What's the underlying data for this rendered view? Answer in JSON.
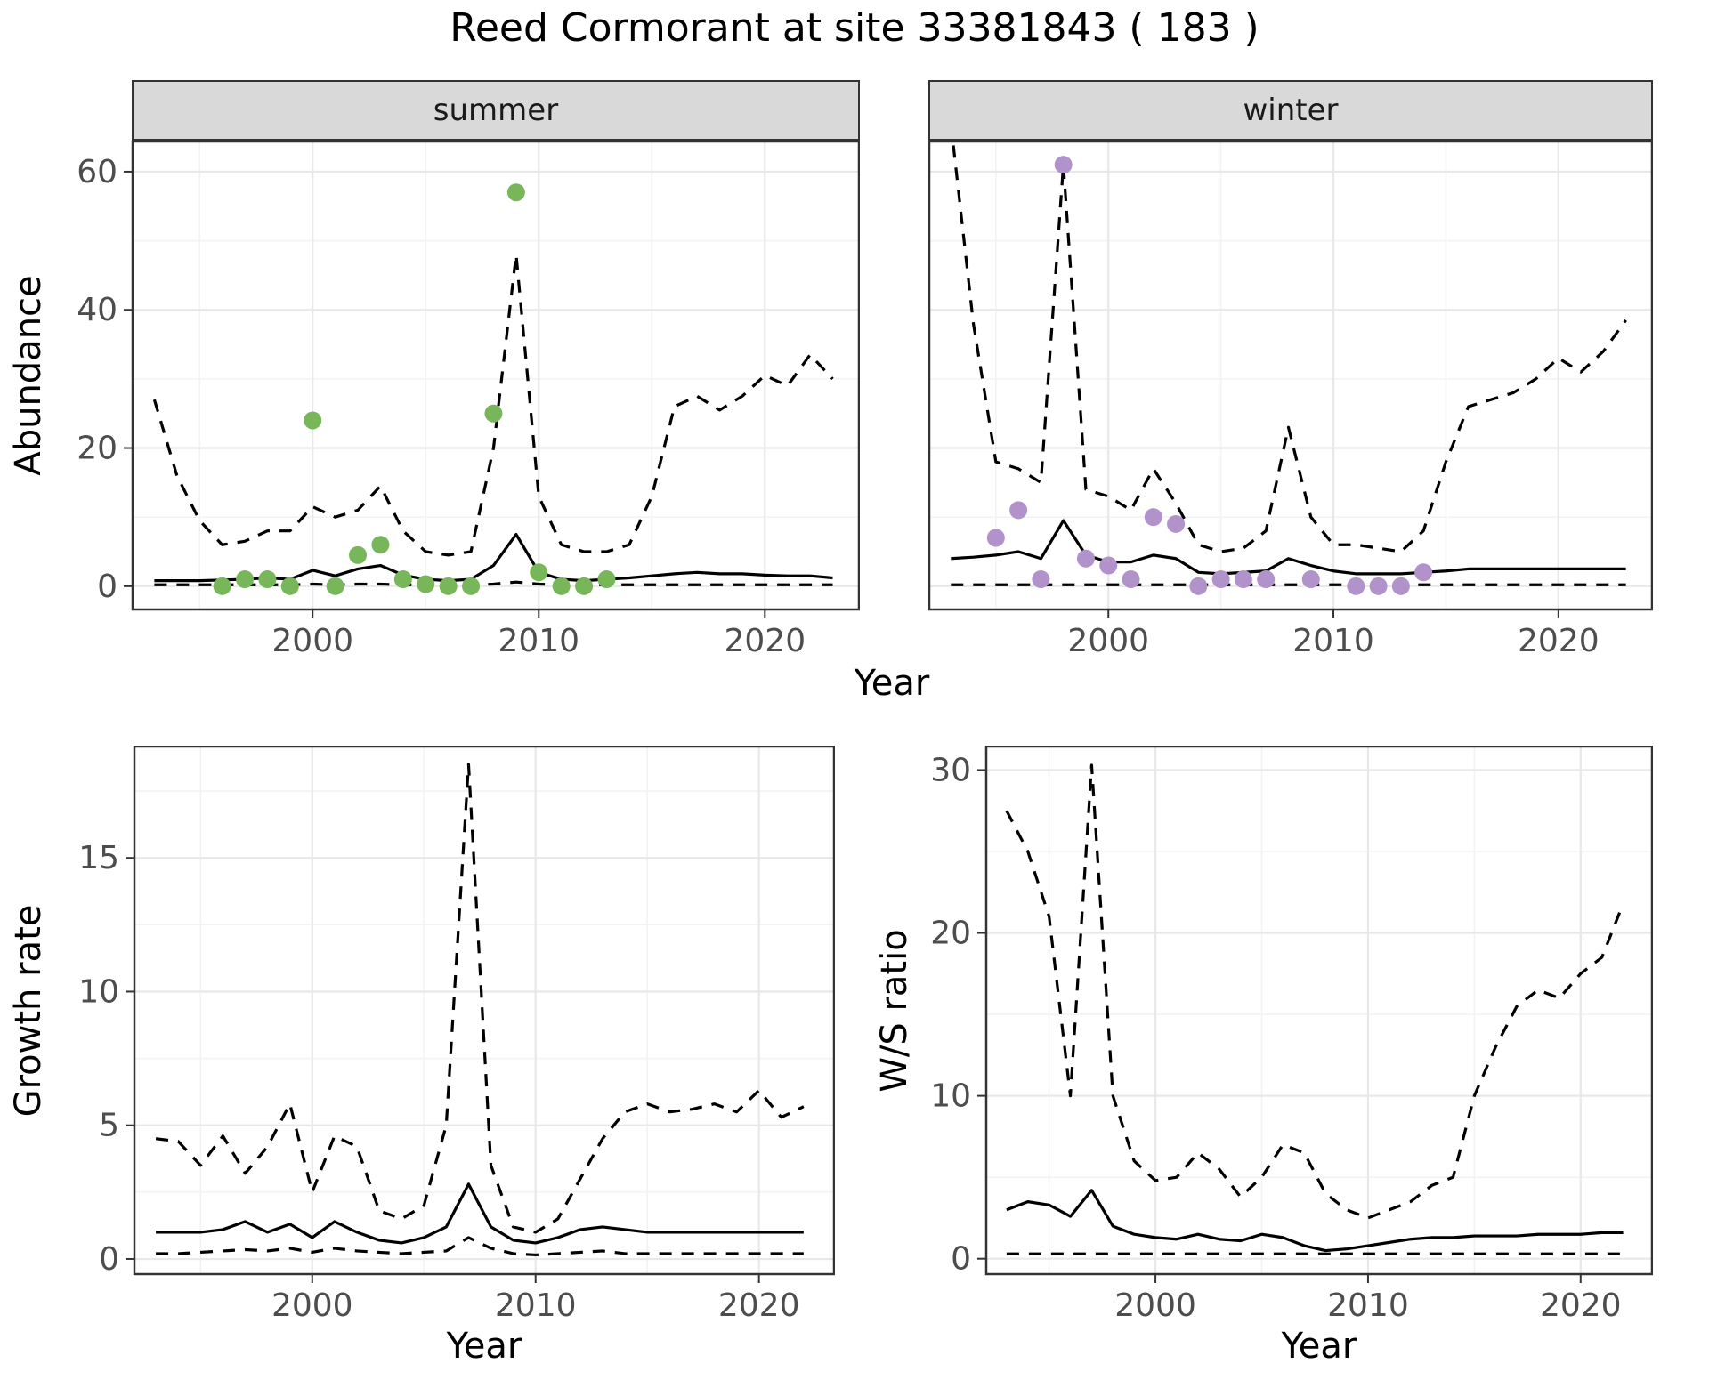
{
  "title": "Reed Cormorant at site 33381843 ( 183 )",
  "facets": {
    "summer": "summer",
    "winter": "winter"
  },
  "axes": {
    "abundance": "Abundance",
    "growth_rate": "Growth rate",
    "ws_ratio": "W/S ratio",
    "year": "Year"
  },
  "colors": {
    "summer_point": "#78b65a",
    "winter_point": "#b192cb",
    "line": "#000000",
    "strip_bg": "#d9d9d9",
    "panel_border": "#333333",
    "grid_major": "#e8e8e8",
    "grid_minor": "#f3f3f3",
    "tick_text": "#4d4d4d"
  },
  "chart_data": [
    {
      "id": "abundance-summer",
      "type": "line+scatter",
      "facet": "summer",
      "xlabel": "Year",
      "ylabel": "Abundance",
      "xlim": [
        1992,
        2024.2
      ],
      "ylim": [
        -3.5,
        64.5
      ],
      "xticks": [
        2000,
        2010,
        2020
      ],
      "yticks": [
        0,
        20,
        40,
        60
      ],
      "x": [
        1993,
        1994,
        1995,
        1996,
        1997,
        1998,
        1999,
        2000,
        2001,
        2002,
        2003,
        2004,
        2005,
        2006,
        2007,
        2008,
        2009,
        2010,
        2011,
        2012,
        2013,
        2014,
        2015,
        2016,
        2017,
        2018,
        2019,
        2020,
        2021,
        2022,
        2023
      ],
      "series": [
        {
          "name": "median",
          "style": "solid",
          "values": [
            0.8,
            0.8,
            0.8,
            0.9,
            1.0,
            1.2,
            1.0,
            2.3,
            1.5,
            2.5,
            3.0,
            1.6,
            1.0,
            0.8,
            1.0,
            3.0,
            7.5,
            2.0,
            1.0,
            0.8,
            1.0,
            1.2,
            1.5,
            1.8,
            2.0,
            1.8,
            1.8,
            1.6,
            1.5,
            1.5,
            1.2
          ]
        },
        {
          "name": "upper_ci",
          "style": "dashed",
          "values": [
            27,
            16,
            9.5,
            6,
            6.5,
            8,
            8,
            11.5,
            10,
            11,
            14.5,
            8,
            5,
            4.5,
            5,
            20,
            48,
            13,
            6,
            5,
            5,
            6,
            13,
            26,
            27.5,
            25.5,
            27.5,
            30.5,
            29,
            33.5,
            30
          ]
        },
        {
          "name": "lower_ci",
          "style": "dashed",
          "values": [
            0.2,
            0.2,
            0.2,
            0.2,
            0.2,
            0.2,
            0.2,
            0.3,
            0.2,
            0.3,
            0.3,
            0.2,
            0.2,
            0.2,
            0.2,
            0.3,
            0.6,
            0.3,
            0.2,
            0.2,
            0.2,
            0.2,
            0.2,
            0.2,
            0.2,
            0.2,
            0.2,
            0.2,
            0.2,
            0.2,
            0.2
          ]
        }
      ],
      "points": {
        "name": "observed-counts",
        "color_key": "summer_point",
        "x": [
          1996,
          1997,
          1998,
          1999,
          2000,
          2001,
          2002,
          2003,
          2004,
          2005,
          2006,
          2007,
          2008,
          2009,
          2010,
          2011,
          2012,
          2013
        ],
        "y": [
          0,
          1,
          1,
          0,
          24,
          0,
          4.5,
          6,
          1,
          0.3,
          0,
          0,
          25,
          57,
          2,
          0,
          0,
          1
        ]
      }
    },
    {
      "id": "abundance-winter",
      "type": "line+scatter",
      "facet": "winter",
      "xlabel": "Year",
      "ylabel": "Abundance",
      "xlim": [
        1992,
        2024.2
      ],
      "ylim": [
        -3.5,
        64.5
      ],
      "xticks": [
        2000,
        2010,
        2020
      ],
      "yticks": [
        0,
        20,
        40,
        60
      ],
      "x": [
        1993,
        1994,
        1995,
        1996,
        1997,
        1998,
        1999,
        2000,
        2001,
        2002,
        2003,
        2004,
        2005,
        2006,
        2007,
        2008,
        2009,
        2010,
        2011,
        2012,
        2013,
        2014,
        2015,
        2016,
        2017,
        2018,
        2019,
        2020,
        2021,
        2022,
        2023
      ],
      "series": [
        {
          "name": "median",
          "style": "solid",
          "values": [
            4.0,
            4.2,
            4.5,
            5.0,
            4.0,
            9.5,
            4.5,
            3.5,
            3.5,
            4.5,
            4.0,
            2.0,
            1.8,
            2.0,
            2.2,
            4.0,
            3.0,
            2.2,
            1.8,
            1.8,
            1.8,
            2.0,
            2.2,
            2.5,
            2.5,
            2.5,
            2.5,
            2.5,
            2.5,
            2.5,
            2.5
          ]
        },
        {
          "name": "upper_ci",
          "style": "dashed",
          "values": [
            67,
            38,
            18,
            17,
            15,
            61,
            14,
            13,
            11,
            17,
            12,
            6,
            5,
            5.5,
            8,
            23,
            10,
            6,
            6,
            5.5,
            5,
            8,
            18,
            26,
            27,
            28,
            30,
            33,
            31,
            34,
            38.5
          ]
        },
        {
          "name": "lower_ci",
          "style": "dashed",
          "values": [
            0.2,
            0.2,
            0.2,
            0.2,
            0.2,
            0.2,
            0.2,
            0.2,
            0.2,
            0.2,
            0.2,
            0.2,
            0.2,
            0.2,
            0.2,
            0.2,
            0.2,
            0.2,
            0.2,
            0.2,
            0.2,
            0.2,
            0.2,
            0.2,
            0.2,
            0.2,
            0.2,
            0.2,
            0.2,
            0.2,
            0.2
          ]
        }
      ],
      "points": {
        "name": "observed-counts",
        "color_key": "winter_point",
        "x": [
          1995,
          1996,
          1997,
          1998,
          1999,
          2000,
          2001,
          2002,
          2003,
          2004,
          2005,
          2006,
          2007,
          2009,
          2011,
          2012,
          2013,
          2014
        ],
        "y": [
          7,
          11,
          1,
          61,
          4,
          3,
          1,
          10,
          9,
          0,
          1,
          1,
          1,
          1,
          0,
          0,
          0,
          2
        ]
      }
    },
    {
      "id": "growth-rate",
      "type": "line",
      "xlabel": "Year",
      "ylabel": "Growth rate",
      "xlim": [
        1992,
        2023.4
      ],
      "ylim": [
        -0.6,
        19.2
      ],
      "xticks": [
        2000,
        2010,
        2020
      ],
      "yticks": [
        0,
        5,
        10,
        15
      ],
      "x": [
        1993,
        1994,
        1995,
        1996,
        1997,
        1998,
        1999,
        2000,
        2001,
        2002,
        2003,
        2004,
        2005,
        2006,
        2007,
        2008,
        2009,
        2010,
        2011,
        2012,
        2013,
        2014,
        2015,
        2016,
        2017,
        2018,
        2019,
        2020,
        2021,
        2022
      ],
      "series": [
        {
          "name": "median",
          "style": "solid",
          "values": [
            1.0,
            1.0,
            1.0,
            1.1,
            1.4,
            1.0,
            1.3,
            0.8,
            1.4,
            1.0,
            0.7,
            0.6,
            0.8,
            1.2,
            2.8,
            1.2,
            0.7,
            0.6,
            0.8,
            1.1,
            1.2,
            1.1,
            1.0,
            1.0,
            1.0,
            1.0,
            1.0,
            1.0,
            1.0,
            1.0
          ]
        },
        {
          "name": "upper_ci",
          "style": "dashed",
          "values": [
            4.5,
            4.4,
            3.5,
            4.6,
            3.2,
            4.2,
            5.8,
            2.5,
            4.6,
            4.2,
            1.8,
            1.5,
            2.0,
            5.0,
            18.5,
            3.5,
            1.2,
            1.0,
            1.5,
            3.0,
            4.5,
            5.5,
            5.8,
            5.5,
            5.6,
            5.8,
            5.5,
            6.3,
            5.3,
            5.7
          ]
        },
        {
          "name": "lower_ci",
          "style": "dashed",
          "values": [
            0.2,
            0.2,
            0.25,
            0.3,
            0.35,
            0.3,
            0.4,
            0.25,
            0.4,
            0.3,
            0.25,
            0.2,
            0.25,
            0.3,
            0.8,
            0.4,
            0.2,
            0.15,
            0.2,
            0.25,
            0.3,
            0.2,
            0.2,
            0.2,
            0.2,
            0.2,
            0.2,
            0.2,
            0.2,
            0.2
          ]
        }
      ]
    },
    {
      "id": "ws-ratio",
      "type": "line",
      "xlabel": "Year",
      "ylabel": "W/S ratio",
      "xlim": [
        1992,
        2023.4
      ],
      "ylim": [
        -1.0,
        31.5
      ],
      "xticks": [
        2000,
        2010,
        2020
      ],
      "yticks": [
        0,
        10,
        20,
        30
      ],
      "x": [
        1993,
        1994,
        1995,
        1996,
        1997,
        1998,
        1999,
        2000,
        2001,
        2002,
        2003,
        2004,
        2005,
        2006,
        2007,
        2008,
        2009,
        2010,
        2011,
        2012,
        2013,
        2014,
        2015,
        2016,
        2017,
        2018,
        2019,
        2020,
        2021,
        2022
      ],
      "series": [
        {
          "name": "median",
          "style": "solid",
          "values": [
            3.0,
            3.5,
            3.3,
            2.6,
            4.2,
            2.0,
            1.5,
            1.3,
            1.2,
            1.5,
            1.2,
            1.1,
            1.5,
            1.3,
            0.8,
            0.5,
            0.6,
            0.8,
            1.0,
            1.2,
            1.3,
            1.3,
            1.4,
            1.4,
            1.4,
            1.5,
            1.5,
            1.5,
            1.6,
            1.6
          ]
        },
        {
          "name": "upper_ci",
          "style": "dashed",
          "values": [
            27.5,
            25,
            21,
            10,
            30.3,
            10,
            6,
            4.8,
            5,
            6.5,
            5.5,
            3.8,
            5,
            7,
            6.5,
            4,
            3,
            2.5,
            3,
            3.5,
            4.5,
            5,
            10,
            13,
            15.5,
            16.5,
            16,
            17.5,
            18.5,
            21.8
          ]
        },
        {
          "name": "lower_ci",
          "style": "dashed",
          "values": [
            0.3,
            0.3,
            0.3,
            0.3,
            0.3,
            0.3,
            0.3,
            0.3,
            0.3,
            0.3,
            0.3,
            0.3,
            0.3,
            0.3,
            0.3,
            0.3,
            0.3,
            0.3,
            0.3,
            0.3,
            0.3,
            0.3,
            0.3,
            0.3,
            0.3,
            0.3,
            0.3,
            0.3,
            0.3,
            0.3
          ]
        }
      ]
    }
  ]
}
